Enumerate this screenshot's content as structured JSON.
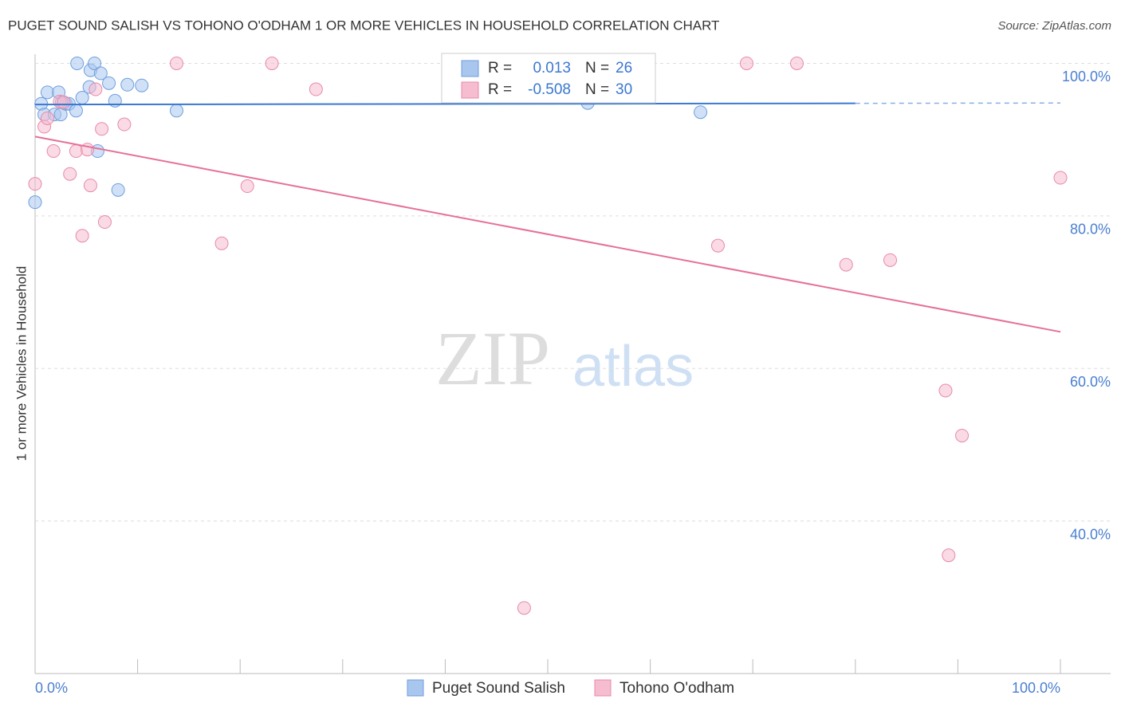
{
  "chart_data": {
    "type": "scatter",
    "title": "PUGET SOUND SALISH VS TOHONO O'ODHAM 1 OR MORE VEHICLES IN HOUSEHOLD CORRELATION CHART",
    "source": "Source: ZipAtlas.com",
    "y_label": "1 or more Vehicles in Household",
    "watermark": [
      "ZIP",
      "atlas"
    ],
    "xlim": [
      0,
      100
    ],
    "ylim": [
      20,
      101.2
    ],
    "xticks": [
      {
        "value": 0,
        "label": "0.0%"
      },
      {
        "value": 100,
        "label": "100.0%"
      }
    ],
    "x_tick_marks": [
      0,
      10,
      20,
      30,
      40,
      50,
      60,
      70,
      80,
      90,
      100
    ],
    "yticks": [
      {
        "value": 40,
        "label": "40.0%"
      },
      {
        "value": 60,
        "label": "60.0%"
      },
      {
        "value": 80,
        "label": "80.0%"
      },
      {
        "value": 100,
        "label": "100.0%"
      }
    ],
    "grid": true,
    "legend_labels": {
      "r": "R =",
      "n": "N ="
    },
    "series": [
      {
        "name": "Puget Sound Salish",
        "color": "#a9c6ef",
        "stroke": "#6f9fde",
        "line_color": "#3a78d0",
        "r": 0.013,
        "n": 26,
        "x": [
          0,
          0.6,
          0.9,
          1.2,
          1.9,
          2.3,
          2.5,
          3.0,
          3.3,
          4.0,
          4.1,
          4.6,
          5.3,
          5.4,
          5.8,
          6.4,
          7.2,
          7.8,
          6.1,
          8.1,
          9.0,
          10.4,
          13.8,
          53.9,
          64.9,
          2.6
        ],
        "values": [
          81.8,
          94.7,
          93.3,
          96.2,
          93.3,
          96.2,
          93.3,
          94.7,
          94.7,
          93.8,
          100,
          95.5,
          96.9,
          99.1,
          100,
          98.7,
          97.4,
          95.1,
          88.5,
          83.4,
          97.2,
          97.1,
          93.8,
          94.8,
          93.6,
          94.9
        ],
        "trend": {
          "x": [
            0,
            100
          ],
          "values": [
            94.6,
            94.8
          ],
          "dashed_from": 80
        }
      },
      {
        "name": "Tohono O'odham",
        "color": "#f6bccf",
        "stroke": "#e88aa8",
        "line_color": "#e5709a",
        "r": -0.508,
        "n": 30,
        "x": [
          0,
          0.9,
          1.2,
          1.8,
          2.4,
          2.8,
          3.4,
          4.0,
          4.6,
          5.1,
          5.4,
          5.9,
          6.5,
          6.8,
          8.7,
          13.8,
          18.2,
          20.7,
          23.1,
          27.4,
          47.7,
          66.6,
          69.4,
          74.3,
          79.1,
          83.4,
          88.8,
          89.1,
          90.4,
          100
        ],
        "values": [
          84.2,
          91.7,
          92.8,
          88.5,
          95.0,
          94.9,
          85.5,
          88.5,
          77.4,
          88.7,
          84.0,
          96.6,
          91.4,
          79.2,
          92.0,
          100,
          76.4,
          83.9,
          100,
          96.6,
          28.6,
          76.1,
          100,
          100,
          73.6,
          74.2,
          57.1,
          35.5,
          51.2,
          85.0
        ],
        "trend": {
          "x": [
            0,
            100
          ],
          "values": [
            90.4,
            64.8
          ]
        }
      }
    ]
  }
}
